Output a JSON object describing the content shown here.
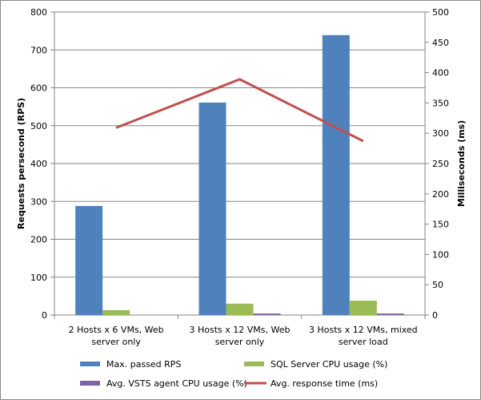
{
  "chart_data": {
    "type": "bar+line",
    "categories": [
      [
        "2 Hosts x 6 VMs, Web",
        "server only"
      ],
      [
        "3 Hosts x 12 VMs, Web",
        "server only"
      ],
      [
        "3 Hosts x 12 VMs, mixed",
        "server load"
      ]
    ],
    "ylabel_left": "Requests persecond (RPS)",
    "ylabel_right": "Milliseconds  (ms)",
    "ylim_left": [
      0,
      800
    ],
    "yticks_left": [
      0,
      100,
      200,
      300,
      400,
      500,
      600,
      700,
      800
    ],
    "ylim_right": [
      0,
      500
    ],
    "yticks_right": [
      0,
      50,
      100,
      150,
      200,
      250,
      300,
      350,
      400,
      450,
      500
    ],
    "grid": true,
    "legend_position": "bottom",
    "series": [
      {
        "name": "Max. passed RPS",
        "type": "bar",
        "axis": "left",
        "color": "#4f81bd",
        "values": [
          288,
          561,
          739
        ]
      },
      {
        "name": "SQL Server CPU usage (%)",
        "type": "bar",
        "axis": "left",
        "color": "#9bbb59",
        "values": [
          13,
          30,
          38
        ]
      },
      {
        "name": "Avg. VSTS agent CPU usage (%)",
        "type": "bar",
        "axis": "left",
        "color": "#8064a2",
        "values": [
          0,
          4,
          4
        ]
      },
      {
        "name": "Avg. response time (ms)",
        "type": "line",
        "axis": "right",
        "color": "#c0504d",
        "values": [
          309,
          389,
          287
        ]
      }
    ]
  }
}
